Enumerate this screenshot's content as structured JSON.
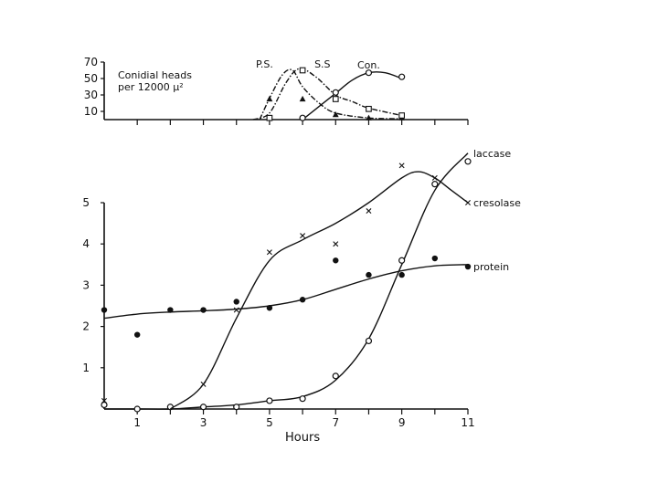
{
  "chart_data": [
    {
      "type": "line",
      "title": "",
      "annotation": [
        "Conidial heads",
        "per 12000 μ²"
      ],
      "xlabel": "",
      "ylabel": "",
      "xlim": [
        0,
        11
      ],
      "ylim": [
        0,
        70
      ],
      "y_ticks": [
        70,
        50,
        30,
        10
      ],
      "y_tick_labels": [
        "70",
        "50",
        "30",
        "10"
      ],
      "grid": false,
      "series": [
        {
          "name": "P.S.",
          "marker": "filled-triangle",
          "style": "dash-dot",
          "x": [
            5,
            6,
            7,
            8,
            9
          ],
          "y": [
            25,
            25,
            6,
            2,
            2
          ],
          "curve": [
            [
              4.7,
              0
            ],
            [
              5.05,
              30
            ],
            [
              5.4,
              55
            ],
            [
              5.7,
              60
            ],
            [
              6.0,
              40
            ],
            [
              6.5,
              20
            ],
            [
              7.0,
              8
            ],
            [
              8.0,
              2
            ],
            [
              9.0,
              1
            ]
          ]
        },
        {
          "name": "S.S",
          "marker": "open-square",
          "style": "dash-dot",
          "x": [
            5,
            6,
            7,
            8,
            9
          ],
          "y": [
            2,
            60,
            25,
            13,
            5
          ],
          "curve": [
            [
              4.5,
              0
            ],
            [
              5.0,
              8
            ],
            [
              5.5,
              45
            ],
            [
              5.9,
              62
            ],
            [
              6.4,
              52
            ],
            [
              7.0,
              30
            ],
            [
              7.5,
              22
            ],
            [
              8.0,
              14
            ],
            [
              9.0,
              5
            ]
          ]
        },
        {
          "name": "Con.",
          "marker": "open-circle",
          "style": "solid",
          "x": [
            6,
            7,
            8,
            9
          ],
          "y": [
            2,
            33,
            57,
            52
          ],
          "curve": [
            [
              6.0,
              0
            ],
            [
              6.5,
              16
            ],
            [
              7.0,
              32
            ],
            [
              7.5,
              48
            ],
            [
              8.0,
              57
            ],
            [
              8.5,
              57
            ],
            [
              9.0,
              50
            ]
          ]
        }
      ]
    },
    {
      "type": "line",
      "title": "",
      "xlabel": "Hours",
      "ylabel": "",
      "xlim": [
        0,
        11
      ],
      "ylim": [
        0,
        5
      ],
      "x_ticks": [
        1,
        3,
        5,
        7,
        9,
        11
      ],
      "x_tick_labels": [
        "1",
        "3",
        "5",
        "7",
        "9",
        "11"
      ],
      "y_ticks": [
        1,
        2,
        3,
        4,
        5
      ],
      "y_tick_labels": [
        "1",
        "2",
        "3",
        "4",
        "5"
      ],
      "grid": false,
      "series": [
        {
          "name": "laccase",
          "marker": "open-circle",
          "x": [
            0,
            1,
            2,
            3,
            4,
            5,
            6,
            7,
            8,
            9,
            10,
            11
          ],
          "y": [
            0.1,
            0.0,
            0.05,
            0.05,
            0.05,
            0.2,
            0.25,
            0.8,
            1.65,
            3.6,
            5.45,
            6.0
          ],
          "curve": [
            [
              0,
              0.0
            ],
            [
              1,
              0.0
            ],
            [
              2,
              0.0
            ],
            [
              3,
              0.05
            ],
            [
              4,
              0.1
            ],
            [
              5,
              0.2
            ],
            [
              6,
              0.3
            ],
            [
              7,
              0.7
            ],
            [
              8,
              1.7
            ],
            [
              9,
              3.5
            ],
            [
              10,
              5.3
            ],
            [
              11,
              6.2
            ]
          ]
        },
        {
          "name": "cresolase",
          "marker": "x",
          "x": [
            0,
            3,
            4,
            5,
            6,
            7,
            8,
            9,
            10,
            11
          ],
          "y": [
            0.2,
            0.6,
            2.4,
            3.8,
            4.2,
            4.0,
            4.8,
            5.9,
            5.6,
            5.0
          ],
          "curve": [
            [
              2,
              0.0
            ],
            [
              3,
              0.6
            ],
            [
              4,
              2.2
            ],
            [
              5,
              3.6
            ],
            [
              6,
              4.1
            ],
            [
              7,
              4.5
            ],
            [
              8,
              5.0
            ],
            [
              9,
              5.6
            ],
            [
              9.5,
              5.75
            ],
            [
              10,
              5.6
            ],
            [
              10.5,
              5.3
            ],
            [
              11,
              5.0
            ]
          ]
        },
        {
          "name": "protein",
          "marker": "filled-circle",
          "x": [
            0,
            1,
            2,
            3,
            4,
            5,
            6,
            7,
            8,
            9,
            10,
            11
          ],
          "y": [
            2.4,
            1.8,
            2.4,
            2.4,
            2.6,
            2.45,
            2.65,
            3.6,
            3.25,
            3.25,
            3.65,
            3.45
          ],
          "curve": [
            [
              0,
              2.2
            ],
            [
              1,
              2.3
            ],
            [
              2,
              2.35
            ],
            [
              3,
              2.38
            ],
            [
              4,
              2.42
            ],
            [
              5,
              2.5
            ],
            [
              6,
              2.65
            ],
            [
              7,
              2.9
            ],
            [
              8,
              3.15
            ],
            [
              9,
              3.35
            ],
            [
              10,
              3.47
            ],
            [
              11,
              3.5
            ]
          ]
        }
      ]
    }
  ]
}
